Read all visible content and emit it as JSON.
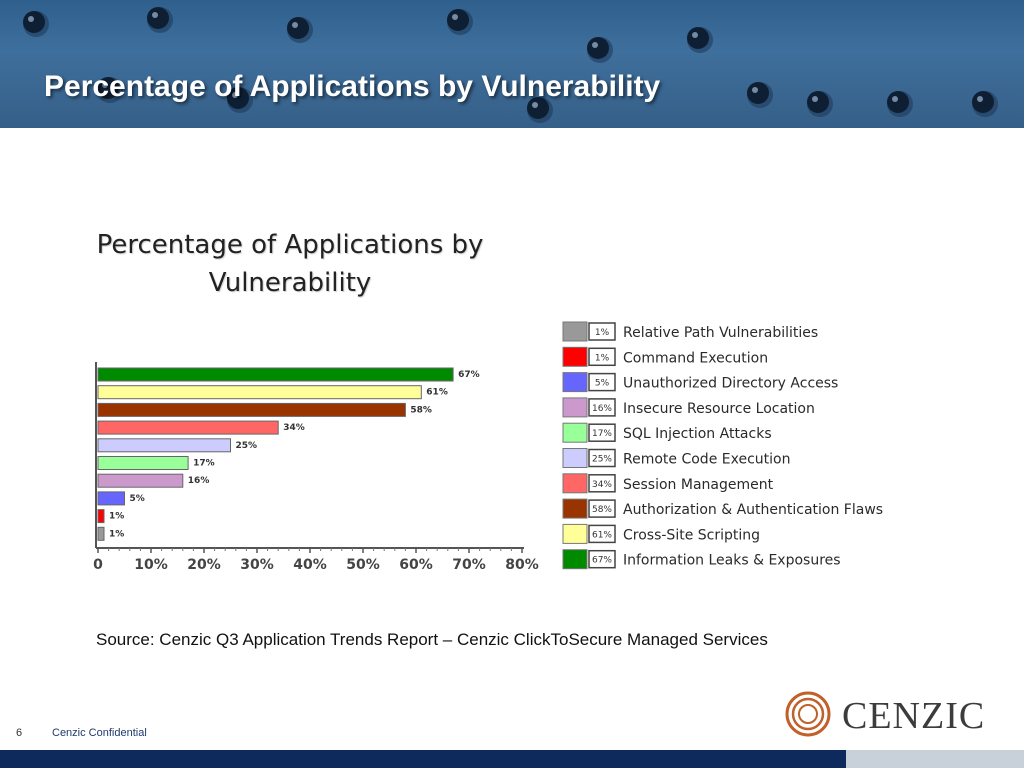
{
  "slide": {
    "title": "Percentage of Applications by Vulnerability",
    "source": "Source: Cenzic Q3 Application Trends Report – Cenzic ClickToSecure Managed Services",
    "page_number": "6",
    "confidential": "Cenzic Confidential",
    "logo_text": "CENZIC"
  },
  "colors": {
    "header": "#3a6a96",
    "footer": "#0e2a5c",
    "logo_accent": "#c0602a"
  },
  "chart_data": {
    "type": "bar",
    "orientation": "horizontal",
    "title": "Percentage of Applications by Vulnerability",
    "xlim": [
      0,
      80
    ],
    "x_ticks": [
      "0",
      "10%",
      "20%",
      "30%",
      "40%",
      "50%",
      "60%",
      "70%",
      "80%"
    ],
    "grid": false,
    "legend_position": "right",
    "categories": [
      "Information Leaks & Exposures",
      "Cross-Site Scripting",
      "Authorization & Authentication Flaws",
      "Session Management",
      "Remote Code Execution",
      "SQL Injection Attacks",
      "Insecure Resource Location",
      "Unauthorized Directory Access",
      "Command Execution",
      "Relative Path Vulnerabilities"
    ],
    "values": [
      67,
      61,
      58,
      34,
      25,
      17,
      16,
      5,
      1,
      1
    ],
    "labels": [
      "67%",
      "61%",
      "58%",
      "34%",
      "25%",
      "17%",
      "16%",
      "5%",
      "1%",
      "1%"
    ],
    "bar_colors": [
      "#008a00",
      "#ffff99",
      "#993300",
      "#ff6666",
      "#ccccff",
      "#99ff99",
      "#cc99cc",
      "#6666ff",
      "#ff0000",
      "#999999"
    ],
    "legend": [
      {
        "label": "Relative Path Vulnerabilities",
        "pct": "1%",
        "color": "#999999"
      },
      {
        "label": "Command Execution",
        "pct": "1%",
        "color": "#ff0000"
      },
      {
        "label": "Unauthorized Directory Access",
        "pct": "5%",
        "color": "#6666ff"
      },
      {
        "label": "Insecure Resource Location",
        "pct": "16%",
        "color": "#cc99cc"
      },
      {
        "label": "SQL Injection Attacks",
        "pct": "17%",
        "color": "#99ff99"
      },
      {
        "label": "Remote Code Execution",
        "pct": "25%",
        "color": "#ccccff"
      },
      {
        "label": "Session Management",
        "pct": "34%",
        "color": "#ff6666"
      },
      {
        "label": "Authorization & Authentication Flaws",
        "pct": "58%",
        "color": "#993300"
      },
      {
        "label": "Cross-Site Scripting",
        "pct": "61%",
        "color": "#ffff99"
      },
      {
        "label": "Information Leaks & Exposures",
        "pct": "67%",
        "color": "#008a00"
      }
    ]
  }
}
